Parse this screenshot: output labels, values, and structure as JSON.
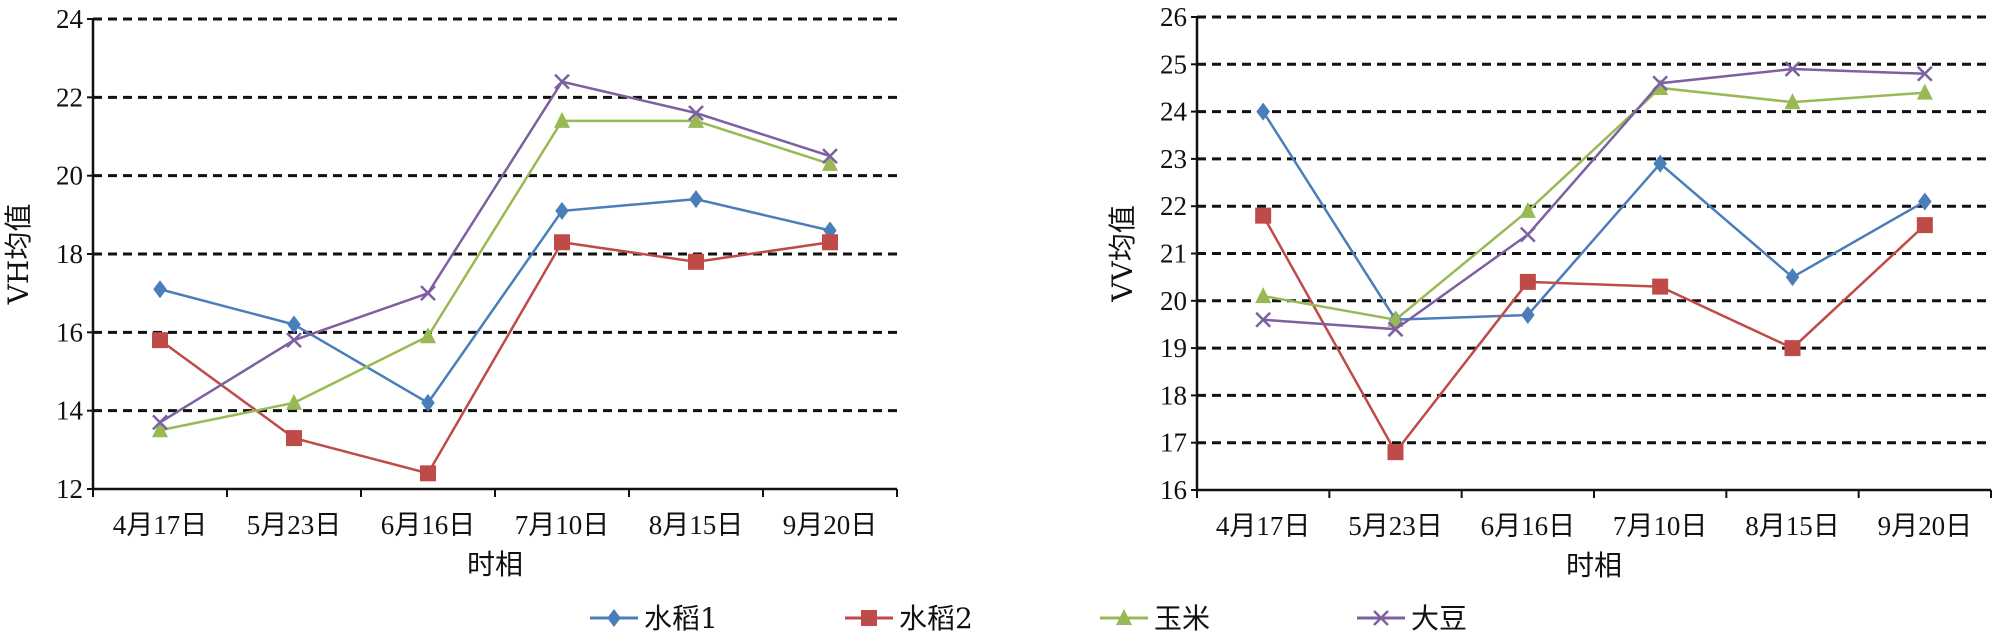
{
  "chart_data": [
    {
      "type": "line",
      "title": "",
      "xlabel": "时相",
      "ylabel": "VH均值",
      "categories": [
        "4月17日",
        "5月23日",
        "6月16日",
        "7月10日",
        "8月15日",
        "9月20日"
      ],
      "ylim": [
        12,
        24
      ],
      "yticks": [
        12,
        14,
        16,
        18,
        20,
        22,
        24
      ],
      "ytick_labels": [
        "12",
        "14",
        "16",
        "18",
        "20",
        "22",
        "24"
      ],
      "grid": "horizontal dashed",
      "series": [
        {
          "name": "水稻1",
          "values": [
            17.1,
            16.2,
            14.2,
            19.1,
            19.4,
            18.6
          ]
        },
        {
          "name": "水稻2",
          "values": [
            15.8,
            13.3,
            12.4,
            18.3,
            17.8,
            18.3
          ]
        },
        {
          "name": "玉米",
          "values": [
            13.5,
            14.2,
            15.9,
            21.4,
            21.4,
            20.3
          ]
        },
        {
          "name": "大豆",
          "values": [
            13.7,
            15.8,
            17.0,
            22.4,
            21.6,
            20.5
          ]
        }
      ]
    },
    {
      "type": "line",
      "title": "",
      "xlabel": "时相",
      "ylabel": "VV均值",
      "categories": [
        "4月17日",
        "5月23日",
        "6月16日",
        "7月10日",
        "8月15日",
        "9月20日"
      ],
      "ylim": [
        16,
        26
      ],
      "yticks": [
        16,
        17,
        18,
        19,
        20,
        21,
        22,
        23,
        24,
        25,
        26
      ],
      "ytick_labels": [
        "16",
        "17",
        "18",
        "19",
        "20",
        "21",
        "22",
        "23",
        "24",
        "25",
        "26"
      ],
      "grid": "horizontal dashed",
      "series": [
        {
          "name": "水稻1",
          "values": [
            24.0,
            19.6,
            19.7,
            22.9,
            20.5,
            22.1
          ]
        },
        {
          "name": "水稻2",
          "values": [
            21.8,
            16.8,
            20.4,
            20.3,
            19.0,
            21.6
          ]
        },
        {
          "name": "玉米",
          "values": [
            20.1,
            19.6,
            21.9,
            24.5,
            24.2,
            24.4
          ]
        },
        {
          "name": "大豆",
          "values": [
            19.6,
            19.4,
            21.4,
            24.6,
            24.9,
            24.8
          ]
        }
      ]
    }
  ],
  "legend": {
    "position": "bottom",
    "items": [
      {
        "name": "水稻1",
        "color": "#4a7ebb",
        "marker": "diamond"
      },
      {
        "name": "水稻2",
        "color": "#be4b48",
        "marker": "square"
      },
      {
        "name": "玉米",
        "color": "#98b954",
        "marker": "triangle"
      },
      {
        "name": "大豆",
        "color": "#7d60a0",
        "marker": "x"
      }
    ]
  }
}
